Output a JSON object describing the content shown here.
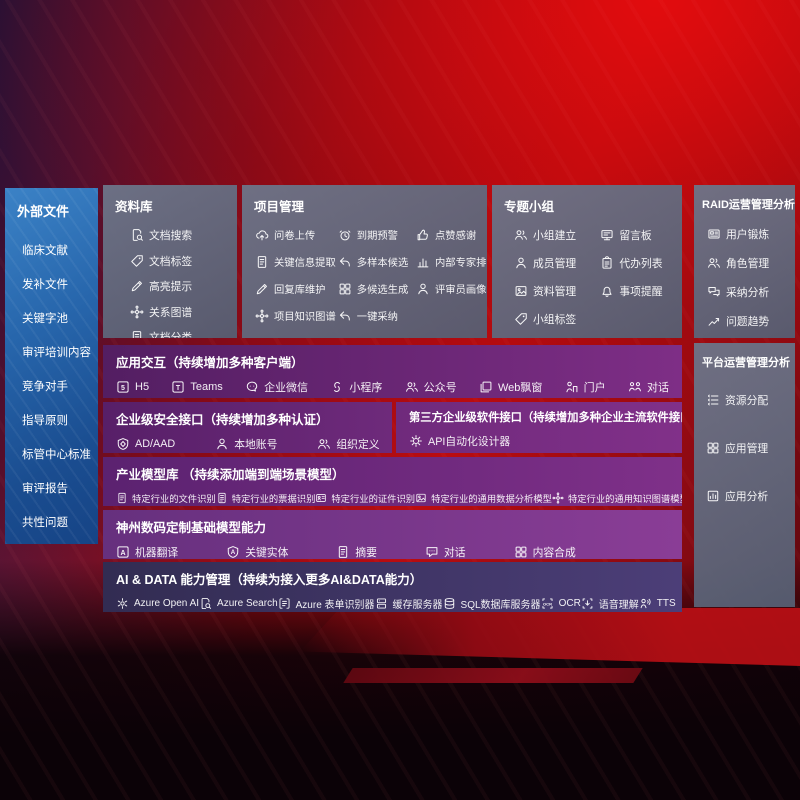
{
  "colors": {
    "accent_red": "#bb0c10",
    "sidebar_blue": "#2766ac",
    "panel_gray": "#68708a",
    "row_purple": "#6e2a7b",
    "row_indigo": "#3d3564"
  },
  "sidebar": {
    "title": "外部文件",
    "items": [
      "临床文献",
      "发补文件",
      "关键字池",
      "审评培训内容",
      "竞争对手",
      "指导原则",
      "标管中心标准",
      "审评报告",
      "共性问题"
    ]
  },
  "library": {
    "title": "资料库",
    "items": [
      {
        "icon": "doc-search",
        "label": "文档搜索"
      },
      {
        "icon": "tag",
        "label": "文档标签"
      },
      {
        "icon": "pen",
        "label": "高亮提示"
      },
      {
        "icon": "graph",
        "label": "关系图谱"
      },
      {
        "icon": "doc",
        "label": "文档分类"
      }
    ]
  },
  "project": {
    "title": "项目管理",
    "items": [
      {
        "icon": "cloud-upload",
        "label": "问卷上传"
      },
      {
        "icon": "alarm",
        "label": "到期预警"
      },
      {
        "icon": "thumb-up",
        "label": "点赞感谢"
      },
      {
        "icon": "doc",
        "label": "关键信息提取"
      },
      {
        "icon": "reply-arrow",
        "label": "多样本候选"
      },
      {
        "icon": "bar-chart",
        "label": "内部专家排名"
      },
      {
        "icon": "pen",
        "label": "回复库维护"
      },
      {
        "icon": "grid",
        "label": "多候选生成"
      },
      {
        "icon": "person",
        "label": "评审员画像"
      },
      {
        "icon": "graph",
        "label": "项目知识图谱"
      },
      {
        "icon": "reply-arrow",
        "label": "一键采纳"
      }
    ]
  },
  "group": {
    "title": "专题小组",
    "items": [
      {
        "icon": "people",
        "label": "小组建立"
      },
      {
        "icon": "message-board",
        "label": "留言板"
      },
      {
        "icon": "person",
        "label": "成员管理"
      },
      {
        "icon": "clipboard",
        "label": "代办列表"
      },
      {
        "icon": "image",
        "label": "资料管理"
      },
      {
        "icon": "bell",
        "label": "事项提醒"
      },
      {
        "icon": "tag",
        "label": "小组标签"
      }
    ]
  },
  "raid": {
    "title": "RAID运营管理分析",
    "items": [
      {
        "icon": "badge",
        "label": "用户锻炼"
      },
      {
        "icon": "people",
        "label": "角色管理"
      },
      {
        "icon": "chat-analysis",
        "label": "采纳分析"
      },
      {
        "icon": "trend-chart",
        "label": "问题趋势"
      }
    ]
  },
  "platform": {
    "title": "平台运营管理分析",
    "items": [
      {
        "icon": "list",
        "label": "资源分配"
      },
      {
        "icon": "grid",
        "label": "应用管理"
      },
      {
        "icon": "app-analysis",
        "label": "应用分析"
      }
    ]
  },
  "rows": {
    "interaction": {
      "title": "应用交互（持续增加多种客户端）",
      "items": [
        {
          "icon": "h5",
          "label": "H5"
        },
        {
          "icon": "teams",
          "label": "Teams"
        },
        {
          "icon": "wechat-work",
          "label": "企业微信"
        },
        {
          "icon": "mini-program",
          "label": "小程序"
        },
        {
          "icon": "official-account",
          "label": "公众号"
        },
        {
          "icon": "web-window",
          "label": "Web飘窗"
        },
        {
          "icon": "portal",
          "label": "门户"
        },
        {
          "icon": "dialog",
          "label": "对话"
        }
      ]
    },
    "security": {
      "title": "企业级安全接口（持续增加多种认证）",
      "items": [
        {
          "icon": "shield",
          "label": "AD/AAD"
        },
        {
          "icon": "person",
          "label": "本地账号"
        },
        {
          "icon": "people",
          "label": "组织定义"
        }
      ]
    },
    "thirdparty": {
      "title": "第三方企业级软件接口（持续增加多种企业主流软件接口）",
      "items": [
        {
          "icon": "gear",
          "label": "API自动化设计器"
        }
      ]
    },
    "models": {
      "title": "产业模型库 （持续添加端到端场景模型）",
      "items": [
        {
          "icon": "doc",
          "label": "特定行业的文件识别"
        },
        {
          "icon": "doc-lines",
          "label": "特定行业的票据识别"
        },
        {
          "icon": "id-card",
          "label": "特定行业的证件识别"
        },
        {
          "icon": "image",
          "label": "特定行业的通用数据分析模型"
        },
        {
          "icon": "graph",
          "label": "特定行业的通用知识图谱模型"
        }
      ]
    },
    "base": {
      "title": "神州数码定制基础模型能力",
      "items": [
        {
          "icon": "translate",
          "label": "机器翻译"
        },
        {
          "icon": "entity",
          "label": "关键实体"
        },
        {
          "icon": "doc",
          "label": "摘要"
        },
        {
          "icon": "chat",
          "label": "对话"
        },
        {
          "icon": "grid",
          "label": "内容合成"
        }
      ]
    },
    "aidata": {
      "title": "AI & DATA 能力管理（持续为接入更多AI&DATA能力）",
      "items": [
        {
          "icon": "openai",
          "label": "Azure Open AI"
        },
        {
          "icon": "doc-search",
          "label": "Azure Search"
        },
        {
          "icon": "form",
          "label": "Azure 表单识别器"
        },
        {
          "icon": "server",
          "label": "缓存服务器"
        },
        {
          "icon": "database",
          "label": "SQL数据库服务器"
        },
        {
          "icon": "ocr",
          "label": "OCR"
        },
        {
          "icon": "speech",
          "label": "语音理解"
        },
        {
          "icon": "tts",
          "label": "TTS"
        }
      ]
    }
  }
}
